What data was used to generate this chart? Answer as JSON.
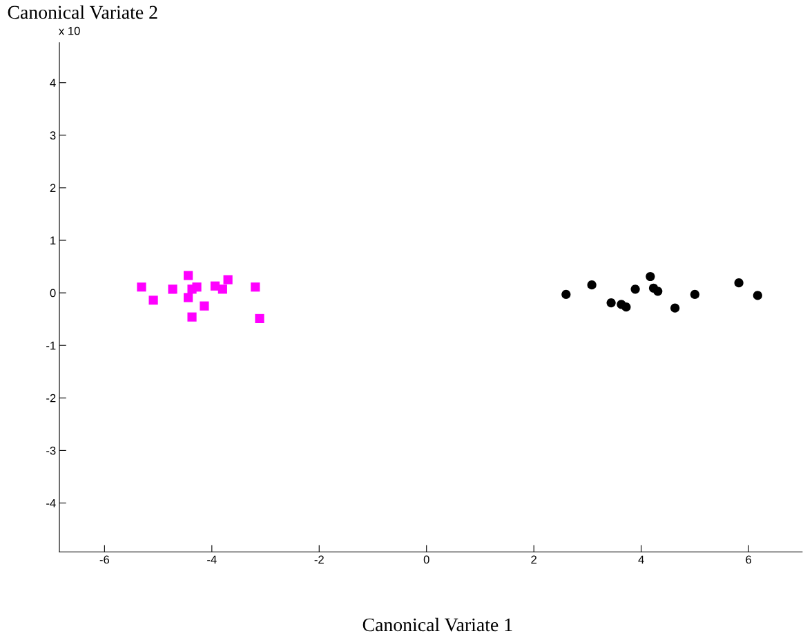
{
  "chart_data": {
    "type": "scatter",
    "xlabel": "Canonical Variate 1",
    "ylabel": "Canonical Variate 2",
    "annotations": [
      "x 10"
    ],
    "series": [
      {
        "color": "#ff00ff",
        "marker": "square",
        "x": [
          -5.31,
          -5.09,
          -4.73,
          -4.44,
          -4.37,
          -4.28,
          -4.44,
          -4.37,
          -4.14,
          -3.94,
          -3.8,
          -3.7,
          -3.19,
          -3.11
        ],
        "values": [
          0.11,
          -0.14,
          0.07,
          0.33,
          0.07,
          0.11,
          -0.09,
          -0.46,
          -0.25,
          0.13,
          0.07,
          0.25,
          0.11,
          -0.49
        ]
      },
      {
        "color": "#000000",
        "marker": "circle",
        "x": [
          2.6,
          3.08,
          3.44,
          3.63,
          3.72,
          3.89,
          4.17,
          4.23,
          4.31,
          4.63,
          5.0,
          5.82,
          6.17
        ],
        "values": [
          -0.03,
          0.15,
          -0.19,
          -0.22,
          -0.27,
          0.07,
          0.31,
          0.09,
          0.03,
          -0.29,
          -0.03,
          0.19,
          -0.05
        ]
      }
    ],
    "xlim": [
      -6.84,
      7.0
    ],
    "ylim": [
      -4.93,
      4.76
    ],
    "xticks": [
      -6,
      -4,
      -2,
      0,
      2,
      4,
      6
    ],
    "yticks": [
      -4,
      -3,
      -2,
      -1,
      0,
      1,
      2,
      3,
      4
    ],
    "grid": false,
    "legend": false
  }
}
